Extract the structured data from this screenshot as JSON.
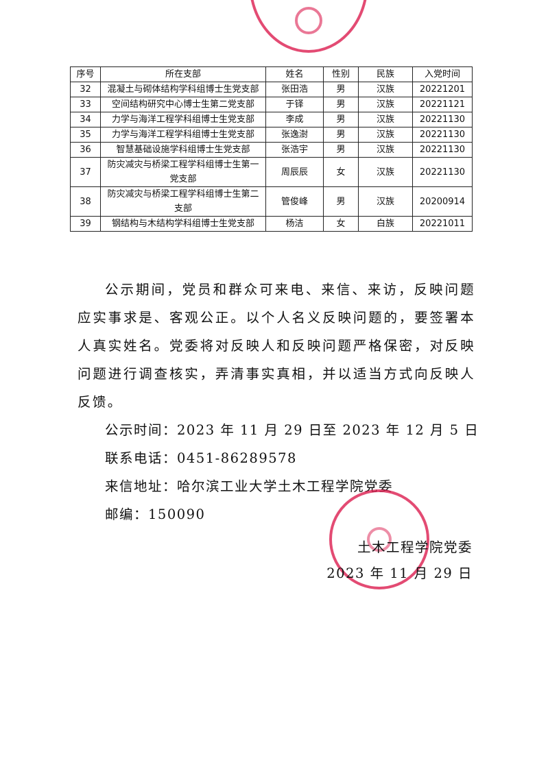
{
  "table": {
    "headers": [
      "序号",
      "所在支部",
      "姓名",
      "性别",
      "民族",
      "入党时间"
    ],
    "rows": [
      [
        "32",
        "混凝土与砌体结构学科组博士生党支部",
        "张田浩",
        "男",
        "汉族",
        "20221201"
      ],
      [
        "33",
        "空间结构研究中心博士生第二党支部",
        "于铎",
        "男",
        "汉族",
        "20221121"
      ],
      [
        "34",
        "力学与海洋工程学科组博士生党支部",
        "李成",
        "男",
        "汉族",
        "20221130"
      ],
      [
        "35",
        "力学与海洋工程学科组博士生党支部",
        "张逸澍",
        "男",
        "汉族",
        "20221130"
      ],
      [
        "36",
        "智慧基础设施学科组博士生党支部",
        "张浩宇",
        "男",
        "汉族",
        "20221130"
      ],
      [
        "37",
        "防灾减灾与桥梁工程学科组博士生第一党支部",
        "周辰辰",
        "女",
        "汉族",
        "20221130"
      ],
      [
        "38",
        "防灾减灾与桥梁工程学科组博士生第二支部",
        "管俊峰",
        "男",
        "汉族",
        "20200914"
      ],
      [
        "39",
        "钢结构与木结构学科组博士生党支部",
        "杨洁",
        "女",
        "白族",
        "20221011"
      ]
    ]
  },
  "body": {
    "paragraph": "公示期间，党员和群众可来电、来信、来访，反映问题应实事求是、客观公正。以个人名义反映问题的，要签署本人真实姓名。党委将对反映人和反映问题严格保密，对反映问题进行调查核实，弄清事实真相，并以适当方式向反映人反馈。",
    "period": "公示时间：2023 年 11 月 29 日至 2023 年 12 月 5 日",
    "phone": "联系电话：0451-86289578",
    "address": "来信地址：哈尔滨工业大学土木工程学院党委",
    "postcode": "邮编：150090"
  },
  "signature": {
    "org": "土木工程学院党委",
    "date": "2023 年 11 月 29 日"
  },
  "seal_color": "#dc1e50"
}
